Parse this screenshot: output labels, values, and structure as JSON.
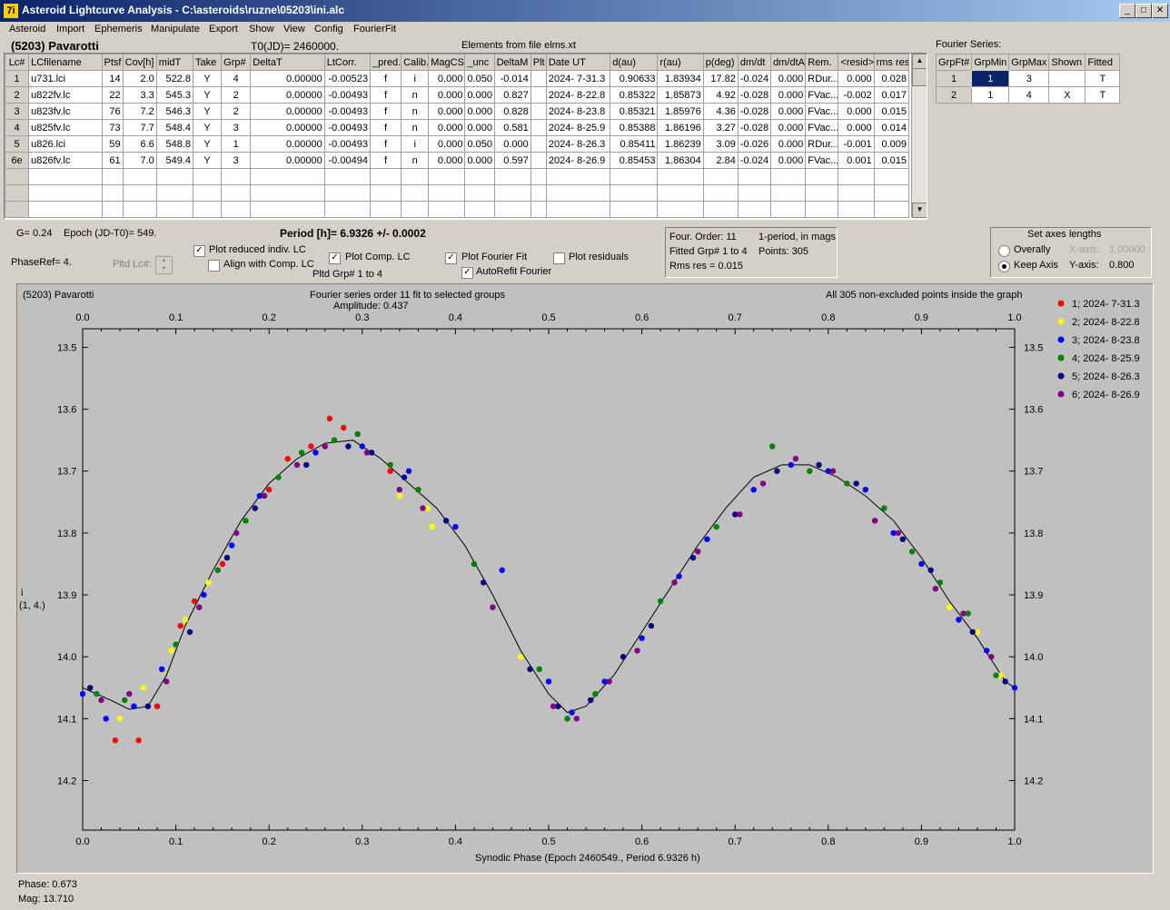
{
  "window": {
    "title": "Asteroid Lightcurve Analysis - C:\\asteroids\\ruzne\\05203\\ini.alc",
    "app_icon": "7i"
  },
  "menu": [
    "Asteroid",
    "Import",
    "Ephemeris",
    "Manipulate",
    "Export",
    "Show",
    "View",
    "Config",
    "FourierFit"
  ],
  "header": {
    "asteroid": "(5203) Pavarotti",
    "t0": "T0(JD)= 2460000.",
    "elements": "Elements from file elms.xt"
  },
  "lc_table": {
    "columns": [
      "Lc#",
      "LCfilename",
      "Ptsf",
      "Cov[h]",
      "midT",
      "Take",
      "Grp#",
      "DeltaT",
      "LtCorr.",
      "_pred.",
      "Calib.",
      "MagCS",
      "_unc",
      "DeltaM",
      "Plt",
      "Date UT",
      "d(au)",
      "r(au)",
      "p(deg)",
      "dm/dt",
      "dm/dtA",
      "Rem.",
      "<resid>",
      "rms res"
    ],
    "rows": [
      [
        "1",
        "u731.lci",
        "14",
        "2.0",
        "522.8",
        "Y",
        "4",
        "0.00000",
        "-0.00523",
        "f",
        "i",
        "0.000",
        "0.050",
        "-0.014",
        "",
        "2024- 7-31.3",
        "0.90633",
        "1.83934",
        "17.82",
        "-0.024",
        "0.000",
        "RDur...",
        "0.000",
        "0.028"
      ],
      [
        "2",
        "u822fv.lc",
        "22",
        "3.3",
        "545.3",
        "Y",
        "2",
        "0.00000",
        "-0.00493",
        "f",
        "n",
        "0.000",
        "0.000",
        "0.827",
        "",
        "2024- 8-22.8",
        "0.85322",
        "1.85873",
        "4.92",
        "-0.028",
        "0.000",
        "FVac...",
        "-0.002",
        "0.017"
      ],
      [
        "3",
        "u823fv.lc",
        "76",
        "7.2",
        "546.3",
        "Y",
        "2",
        "0.00000",
        "-0.00493",
        "f",
        "n",
        "0.000",
        "0.000",
        "0.828",
        "",
        "2024- 8-23.8",
        "0.85321",
        "1.85976",
        "4.36",
        "-0.028",
        "0.000",
        "FVac...",
        "0.000",
        "0.015"
      ],
      [
        "4",
        "u825fv.lc",
        "73",
        "7.7",
        "548.4",
        "Y",
        "3",
        "0.00000",
        "-0.00493",
        "f",
        "n",
        "0.000",
        "0.000",
        "0.581",
        "",
        "2024- 8-25.9",
        "0.85388",
        "1.86196",
        "3.27",
        "-0.028",
        "0.000",
        "FVac...",
        "0.000",
        "0.014"
      ],
      [
        "5",
        "u826.lci",
        "59",
        "6.6",
        "548.8",
        "Y",
        "1",
        "0.00000",
        "-0.00493",
        "f",
        "i",
        "0.000",
        "0.050",
        "0.000",
        "",
        "2024- 8-26.3",
        "0.85411",
        "1.86239",
        "3.09",
        "-0.026",
        "0.000",
        "RDur...",
        "-0.001",
        "0.009"
      ],
      [
        "6e",
        "u826fv.lc",
        "61",
        "7.0",
        "549.4",
        "Y",
        "3",
        "0.00000",
        "-0.00494",
        "f",
        "n",
        "0.000",
        "0.000",
        "0.597",
        "",
        "2024- 8-26.9",
        "0.85453",
        "1.86304",
        "2.84",
        "-0.024",
        "0.000",
        "FVac...",
        "0.001",
        "0.015"
      ]
    ]
  },
  "fourier_table": {
    "label": "Fourier Series:",
    "columns": [
      "GrpFt#",
      "GrpMin",
      "GrpMax",
      "Shown",
      "Fitted"
    ],
    "rows": [
      [
        "1",
        "1",
        "3",
        "",
        "T"
      ],
      [
        "2",
        "1",
        "4",
        "X",
        "T"
      ]
    ]
  },
  "controls": {
    "g": "G= 0.24",
    "epoch": "Epoch (JD-T0)= 549.",
    "period": "Period [h]= 6.9326 +/- 0.0002",
    "phaseref": "PhaseRef= 4.",
    "pltd_lc": "Pltd Lc#:",
    "plot_reduced": "Plot reduced indiv. LC",
    "align_comp": "Align with Comp. LC",
    "plot_comp": "Plot Comp. LC",
    "pltd_grp": "Pltd Grp#  1   to   4",
    "plot_fourier": "Plot Fourier Fit",
    "autorefit": "AutoRefit Fourier",
    "plot_residuals": "Plot residuals",
    "checks": {
      "plot_reduced": true,
      "align_comp": false,
      "plot_comp": true,
      "plot_fourier": true,
      "autorefit": true,
      "plot_residuals": false
    }
  },
  "fit_info": {
    "order": "Four. Order: 11",
    "period_mode": "1-period, in mags",
    "fitted": "Fitted Grp# 1 to 4",
    "points": "Points: 305",
    "rms": "Rms res     = 0.015"
  },
  "axes_box": {
    "title": "Set axes lengths",
    "overally": "Overally",
    "keep": "Keep Axis",
    "xaxis_label": "X-axis:",
    "xaxis_val": "1.00000",
    "yaxis_label": "Y-axis:",
    "yaxis_val": "0.800",
    "selected": "keep"
  },
  "plot": {
    "name": "(5203) Pavarotti",
    "fit_title": "Fourier series order 11 fit to selected groups",
    "amplitude": "Amplitude: 0.437",
    "points_note": "All 305 non-excluded points inside the graph",
    "ylabel": "i",
    "ylabel2": "(1, 4.)",
    "xlabel": "Synodic Phase (Epoch 2460549., Period 6.9326 h)"
  },
  "chart_data": {
    "type": "scatter",
    "xlim": [
      0,
      1
    ],
    "ylim": [
      14.28,
      13.47
    ],
    "x_ticks": [
      "0.0",
      "0.1",
      "0.2",
      "0.3",
      "0.4",
      "0.5",
      "0.6",
      "0.7",
      "0.8",
      "0.9",
      "1.0"
    ],
    "y_ticks": [
      "13.5",
      "13.6",
      "13.7",
      "13.8",
      "13.9",
      "14.0",
      "14.1",
      "14.2"
    ],
    "legend": [
      {
        "name": "1; 2024- 7-31.3",
        "color": "#ff0000"
      },
      {
        "name": "2; 2024- 8-22.8",
        "color": "#ffff00"
      },
      {
        "name": "3; 2024- 8-23.8",
        "color": "#0000ff"
      },
      {
        "name": "4; 2024- 8-25.9",
        "color": "#008000"
      },
      {
        "name": "5; 2024- 8-26.3",
        "color": "#000080"
      },
      {
        "name": "6; 2024- 8-26.9",
        "color": "#800080"
      }
    ],
    "fit_curve": [
      [
        0.0,
        14.05
      ],
      [
        0.03,
        14.07
      ],
      [
        0.05,
        14.085
      ],
      [
        0.07,
        14.08
      ],
      [
        0.09,
        14.03
      ],
      [
        0.11,
        13.95
      ],
      [
        0.14,
        13.86
      ],
      [
        0.17,
        13.78
      ],
      [
        0.2,
        13.72
      ],
      [
        0.23,
        13.68
      ],
      [
        0.26,
        13.655
      ],
      [
        0.29,
        13.65
      ],
      [
        0.32,
        13.68
      ],
      [
        0.35,
        13.72
      ],
      [
        0.38,
        13.76
      ],
      [
        0.41,
        13.82
      ],
      [
        0.44,
        13.9
      ],
      [
        0.47,
        13.99
      ],
      [
        0.5,
        14.06
      ],
      [
        0.52,
        14.09
      ],
      [
        0.54,
        14.08
      ],
      [
        0.57,
        14.03
      ],
      [
        0.6,
        13.96
      ],
      [
        0.63,
        13.89
      ],
      [
        0.66,
        13.82
      ],
      [
        0.69,
        13.76
      ],
      [
        0.72,
        13.71
      ],
      [
        0.75,
        13.69
      ],
      [
        0.78,
        13.69
      ],
      [
        0.81,
        13.71
      ],
      [
        0.84,
        13.74
      ],
      [
        0.87,
        13.78
      ],
      [
        0.9,
        13.84
      ],
      [
        0.93,
        13.91
      ],
      [
        0.96,
        13.97
      ],
      [
        0.99,
        14.04
      ],
      [
        1.0,
        14.05
      ]
    ],
    "points": {
      "1": [
        [
          0.035,
          14.135
        ],
        [
          0.06,
          14.135
        ],
        [
          0.08,
          14.08
        ],
        [
          0.105,
          13.95
        ],
        [
          0.12,
          13.91
        ],
        [
          0.15,
          13.85
        ],
        [
          0.2,
          13.73
        ],
        [
          0.22,
          13.68
        ],
        [
          0.245,
          13.66
        ],
        [
          0.265,
          13.615
        ],
        [
          0.28,
          13.63
        ],
        [
          0.33,
          13.7
        ]
      ],
      "2": [
        [
          0.04,
          14.1
        ],
        [
          0.065,
          14.05
        ],
        [
          0.095,
          13.99
        ],
        [
          0.11,
          13.94
        ],
        [
          0.135,
          13.88
        ],
        [
          0.34,
          13.74
        ],
        [
          0.37,
          13.76
        ],
        [
          0.375,
          13.79
        ],
        [
          0.47,
          14.0
        ],
        [
          0.93,
          13.92
        ],
        [
          0.96,
          13.96
        ],
        [
          0.985,
          14.03
        ]
      ],
      "3": [
        [
          0.0,
          14.06
        ],
        [
          0.025,
          14.1
        ],
        [
          0.055,
          14.08
        ],
        [
          0.085,
          14.02
        ],
        [
          0.13,
          13.9
        ],
        [
          0.16,
          13.82
        ],
        [
          0.19,
          13.74
        ],
        [
          0.25,
          13.67
        ],
        [
          0.3,
          13.66
        ],
        [
          0.35,
          13.7
        ],
        [
          0.4,
          13.79
        ],
        [
          0.45,
          13.86
        ],
        [
          0.5,
          14.04
        ],
        [
          0.525,
          14.09
        ],
        [
          0.56,
          14.04
        ],
        [
          0.6,
          13.97
        ],
        [
          0.64,
          13.87
        ],
        [
          0.67,
          13.81
        ],
        [
          0.72,
          13.73
        ],
        [
          0.76,
          13.69
        ],
        [
          0.8,
          13.7
        ],
        [
          0.84,
          13.73
        ],
        [
          0.87,
          13.8
        ],
        [
          0.9,
          13.85
        ],
        [
          0.94,
          13.94
        ],
        [
          0.97,
          13.99
        ],
        [
          1.0,
          14.05
        ]
      ],
      "4": [
        [
          0.015,
          14.06
        ],
        [
          0.045,
          14.07
        ],
        [
          0.1,
          13.98
        ],
        [
          0.145,
          13.86
        ],
        [
          0.175,
          13.78
        ],
        [
          0.21,
          13.71
        ],
        [
          0.235,
          13.67
        ],
        [
          0.27,
          13.65
        ],
        [
          0.295,
          13.64
        ],
        [
          0.33,
          13.69
        ],
        [
          0.36,
          13.73
        ],
        [
          0.42,
          13.85
        ],
        [
          0.49,
          14.02
        ],
        [
          0.52,
          14.1
        ],
        [
          0.55,
          14.06
        ],
        [
          0.62,
          13.91
        ],
        [
          0.68,
          13.79
        ],
        [
          0.74,
          13.66
        ],
        [
          0.78,
          13.7
        ],
        [
          0.82,
          13.72
        ],
        [
          0.86,
          13.76
        ],
        [
          0.89,
          13.83
        ],
        [
          0.92,
          13.88
        ],
        [
          0.95,
          13.93
        ],
        [
          0.98,
          14.03
        ]
      ],
      "5": [
        [
          0.008,
          14.05
        ],
        [
          0.07,
          14.08
        ],
        [
          0.115,
          13.96
        ],
        [
          0.155,
          13.84
        ],
        [
          0.185,
          13.76
        ],
        [
          0.24,
          13.69
        ],
        [
          0.285,
          13.66
        ],
        [
          0.31,
          13.67
        ],
        [
          0.345,
          13.71
        ],
        [
          0.39,
          13.78
        ],
        [
          0.43,
          13.88
        ],
        [
          0.48,
          14.02
        ],
        [
          0.51,
          14.08
        ],
        [
          0.545,
          14.07
        ],
        [
          0.58,
          14.0
        ],
        [
          0.61,
          13.95
        ],
        [
          0.655,
          13.84
        ],
        [
          0.7,
          13.77
        ],
        [
          0.745,
          13.7
        ],
        [
          0.79,
          13.69
        ],
        [
          0.83,
          13.72
        ],
        [
          0.88,
          13.81
        ],
        [
          0.91,
          13.86
        ],
        [
          0.955,
          13.96
        ],
        [
          0.99,
          14.04
        ]
      ],
      "6": [
        [
          0.02,
          14.07
        ],
        [
          0.05,
          14.06
        ],
        [
          0.09,
          14.04
        ],
        [
          0.125,
          13.92
        ],
        [
          0.165,
          13.8
        ],
        [
          0.195,
          13.74
        ],
        [
          0.23,
          13.69
        ],
        [
          0.26,
          13.66
        ],
        [
          0.305,
          13.67
        ],
        [
          0.34,
          13.73
        ],
        [
          0.365,
          13.76
        ],
        [
          0.44,
          13.92
        ],
        [
          0.505,
          14.08
        ],
        [
          0.53,
          14.1
        ],
        [
          0.565,
          14.04
        ],
        [
          0.595,
          13.99
        ],
        [
          0.635,
          13.88
        ],
        [
          0.66,
          13.83
        ],
        [
          0.705,
          13.77
        ],
        [
          0.73,
          13.72
        ],
        [
          0.765,
          13.68
        ],
        [
          0.805,
          13.7
        ],
        [
          0.85,
          13.78
        ],
        [
          0.875,
          13.8
        ],
        [
          0.915,
          13.89
        ],
        [
          0.945,
          13.93
        ],
        [
          0.975,
          14.0
        ]
      ]
    }
  },
  "status": {
    "phase": "Phase:  0.673",
    "mag": "Mag:    13.710"
  }
}
